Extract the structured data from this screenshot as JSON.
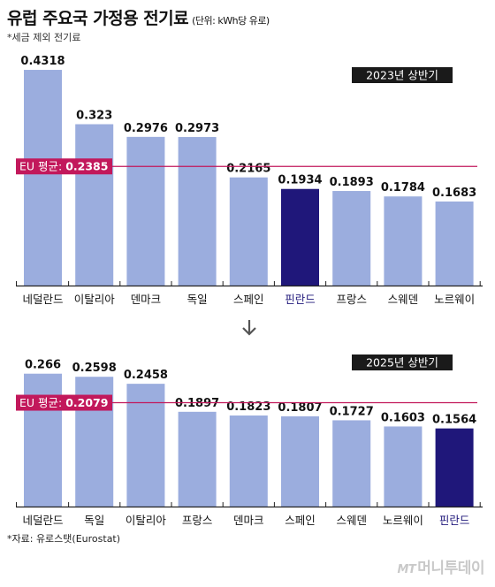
{
  "title": "유럽 주요국 가정용 전기료",
  "unit": "(단위: kWh당 유로)",
  "subtitle": "*세금 제외 전기료",
  "footnote": "*자료: 유로스탯(Eurostat)",
  "logo": {
    "mark": "MT",
    "name": "머니투데이"
  },
  "colors": {
    "bar": "#9badde",
    "highlight_bar": "#1f177a",
    "eu_line": "#c2185b",
    "axis": "#222222"
  },
  "chart_data": [
    {
      "type": "bar",
      "period": "2023년 상반기",
      "categories": [
        "네덜란드",
        "이탈리아",
        "덴마크",
        "독일",
        "스페인",
        "핀란드",
        "프랑스",
        "스웨덴",
        "노르웨이"
      ],
      "values": [
        0.4318,
        0.323,
        0.2976,
        0.2973,
        0.2165,
        0.1934,
        0.1893,
        0.1784,
        0.1683
      ],
      "value_labels": [
        "0.4318",
        "0.323",
        "0.2976",
        "0.2973",
        "0.2165",
        "0.1934",
        "0.1893",
        "0.1784",
        "0.1683"
      ],
      "highlight": "핀란드",
      "reference_line": {
        "prefix": "EU 평균: ",
        "value": 0.2385,
        "label": "0.2385"
      },
      "ylim": [
        0,
        0.45
      ]
    },
    {
      "type": "bar",
      "period": "2025년 상반기",
      "categories": [
        "네덜란드",
        "독일",
        "이탈리아",
        "프랑스",
        "덴마크",
        "스페인",
        "스웨덴",
        "노르웨이",
        "핀란드"
      ],
      "values": [
        0.266,
        0.2598,
        0.2458,
        0.1897,
        0.1823,
        0.1807,
        0.1727,
        0.1603,
        0.1564
      ],
      "value_labels": [
        "0.266",
        "0.2598",
        "0.2458",
        "0.1897",
        "0.1823",
        "0.1807",
        "0.1727",
        "0.1603",
        "0.1564"
      ],
      "highlight": "핀란드",
      "reference_line": {
        "prefix": "EU 평균: ",
        "value": 0.2079,
        "label": "0.2079"
      },
      "ylim": [
        0,
        0.45
      ]
    }
  ]
}
